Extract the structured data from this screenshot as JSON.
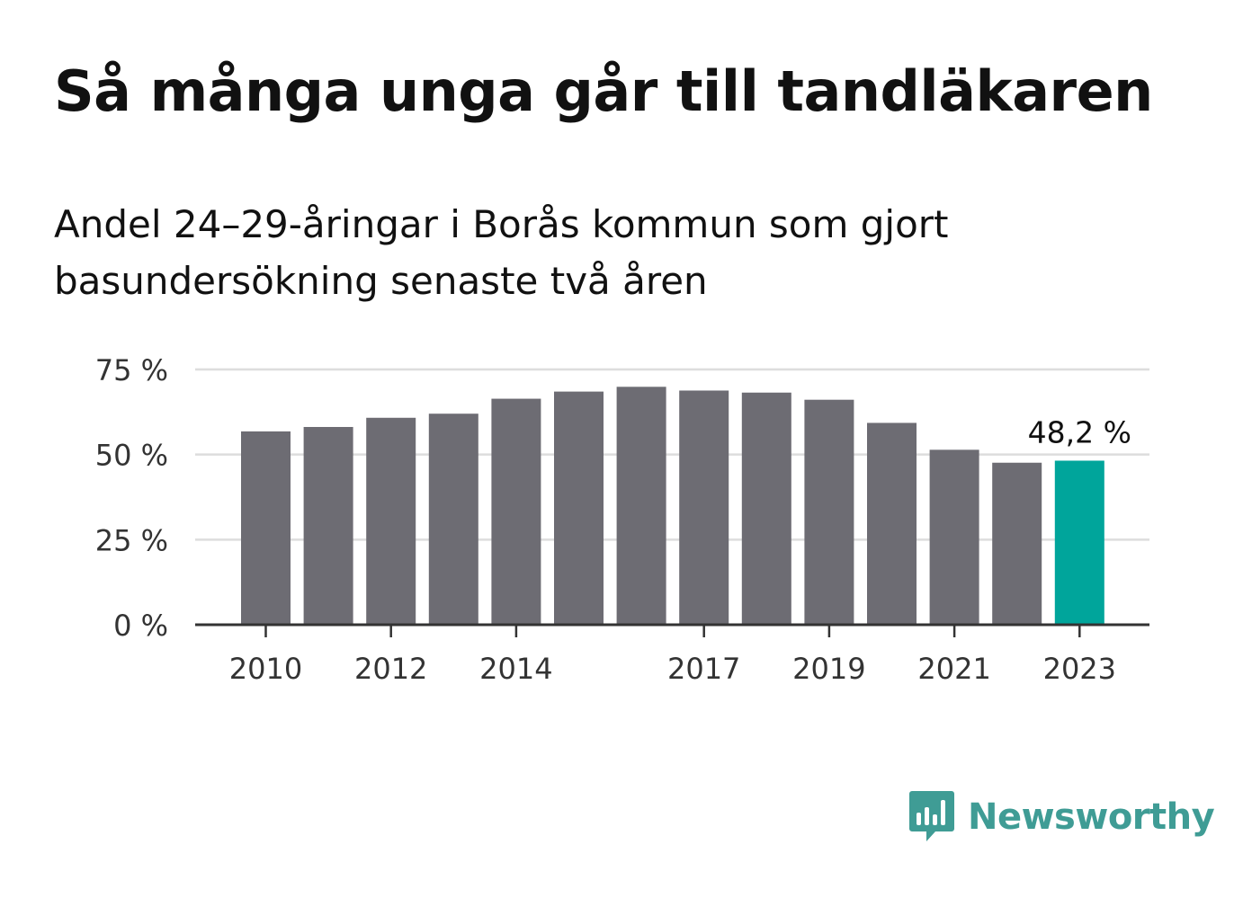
{
  "title": "Så många unga går till tandläkaren",
  "subtitle": "Andel 24–29-åringar i Borås kommun som gjort basundersökning senaste två åren",
  "brand": {
    "name": "Newsworthy",
    "color": "#3f9c95",
    "icon": "bar-chart-speech-bubble-icon"
  },
  "colors": {
    "bar": "#6d6c73",
    "highlight": "#00a59b",
    "grid": "#dddddd",
    "axis": "#333333",
    "text": "#333333"
  },
  "chart_data": {
    "type": "bar",
    "title": "Så många unga går till tandläkaren",
    "subtitle": "Andel 24–29-åringar i Borås kommun som gjort basundersökning senaste två åren",
    "xlabel": "",
    "ylabel": "",
    "categories": [
      "2010",
      "2011",
      "2012",
      "2013",
      "2014",
      "2015",
      "2016",
      "2017",
      "2018",
      "2019",
      "2020",
      "2021",
      "2022",
      "2023"
    ],
    "values": [
      56.8,
      58.1,
      60.8,
      62.0,
      66.4,
      68.5,
      69.9,
      68.8,
      68.2,
      66.1,
      59.3,
      51.4,
      47.6,
      48.2
    ],
    "ylim": [
      0,
      75
    ],
    "yticks": [
      0,
      25,
      50,
      75
    ],
    "ytick_labels": [
      "0 %",
      "25 %",
      "50 %",
      "75 %"
    ],
    "xtick_labels": [
      "2010",
      "2012",
      "2014",
      "2017",
      "2019",
      "2021",
      "2023"
    ],
    "highlight": {
      "category": "2023",
      "label": "48,2 %"
    },
    "grid": true,
    "legend": "none"
  }
}
